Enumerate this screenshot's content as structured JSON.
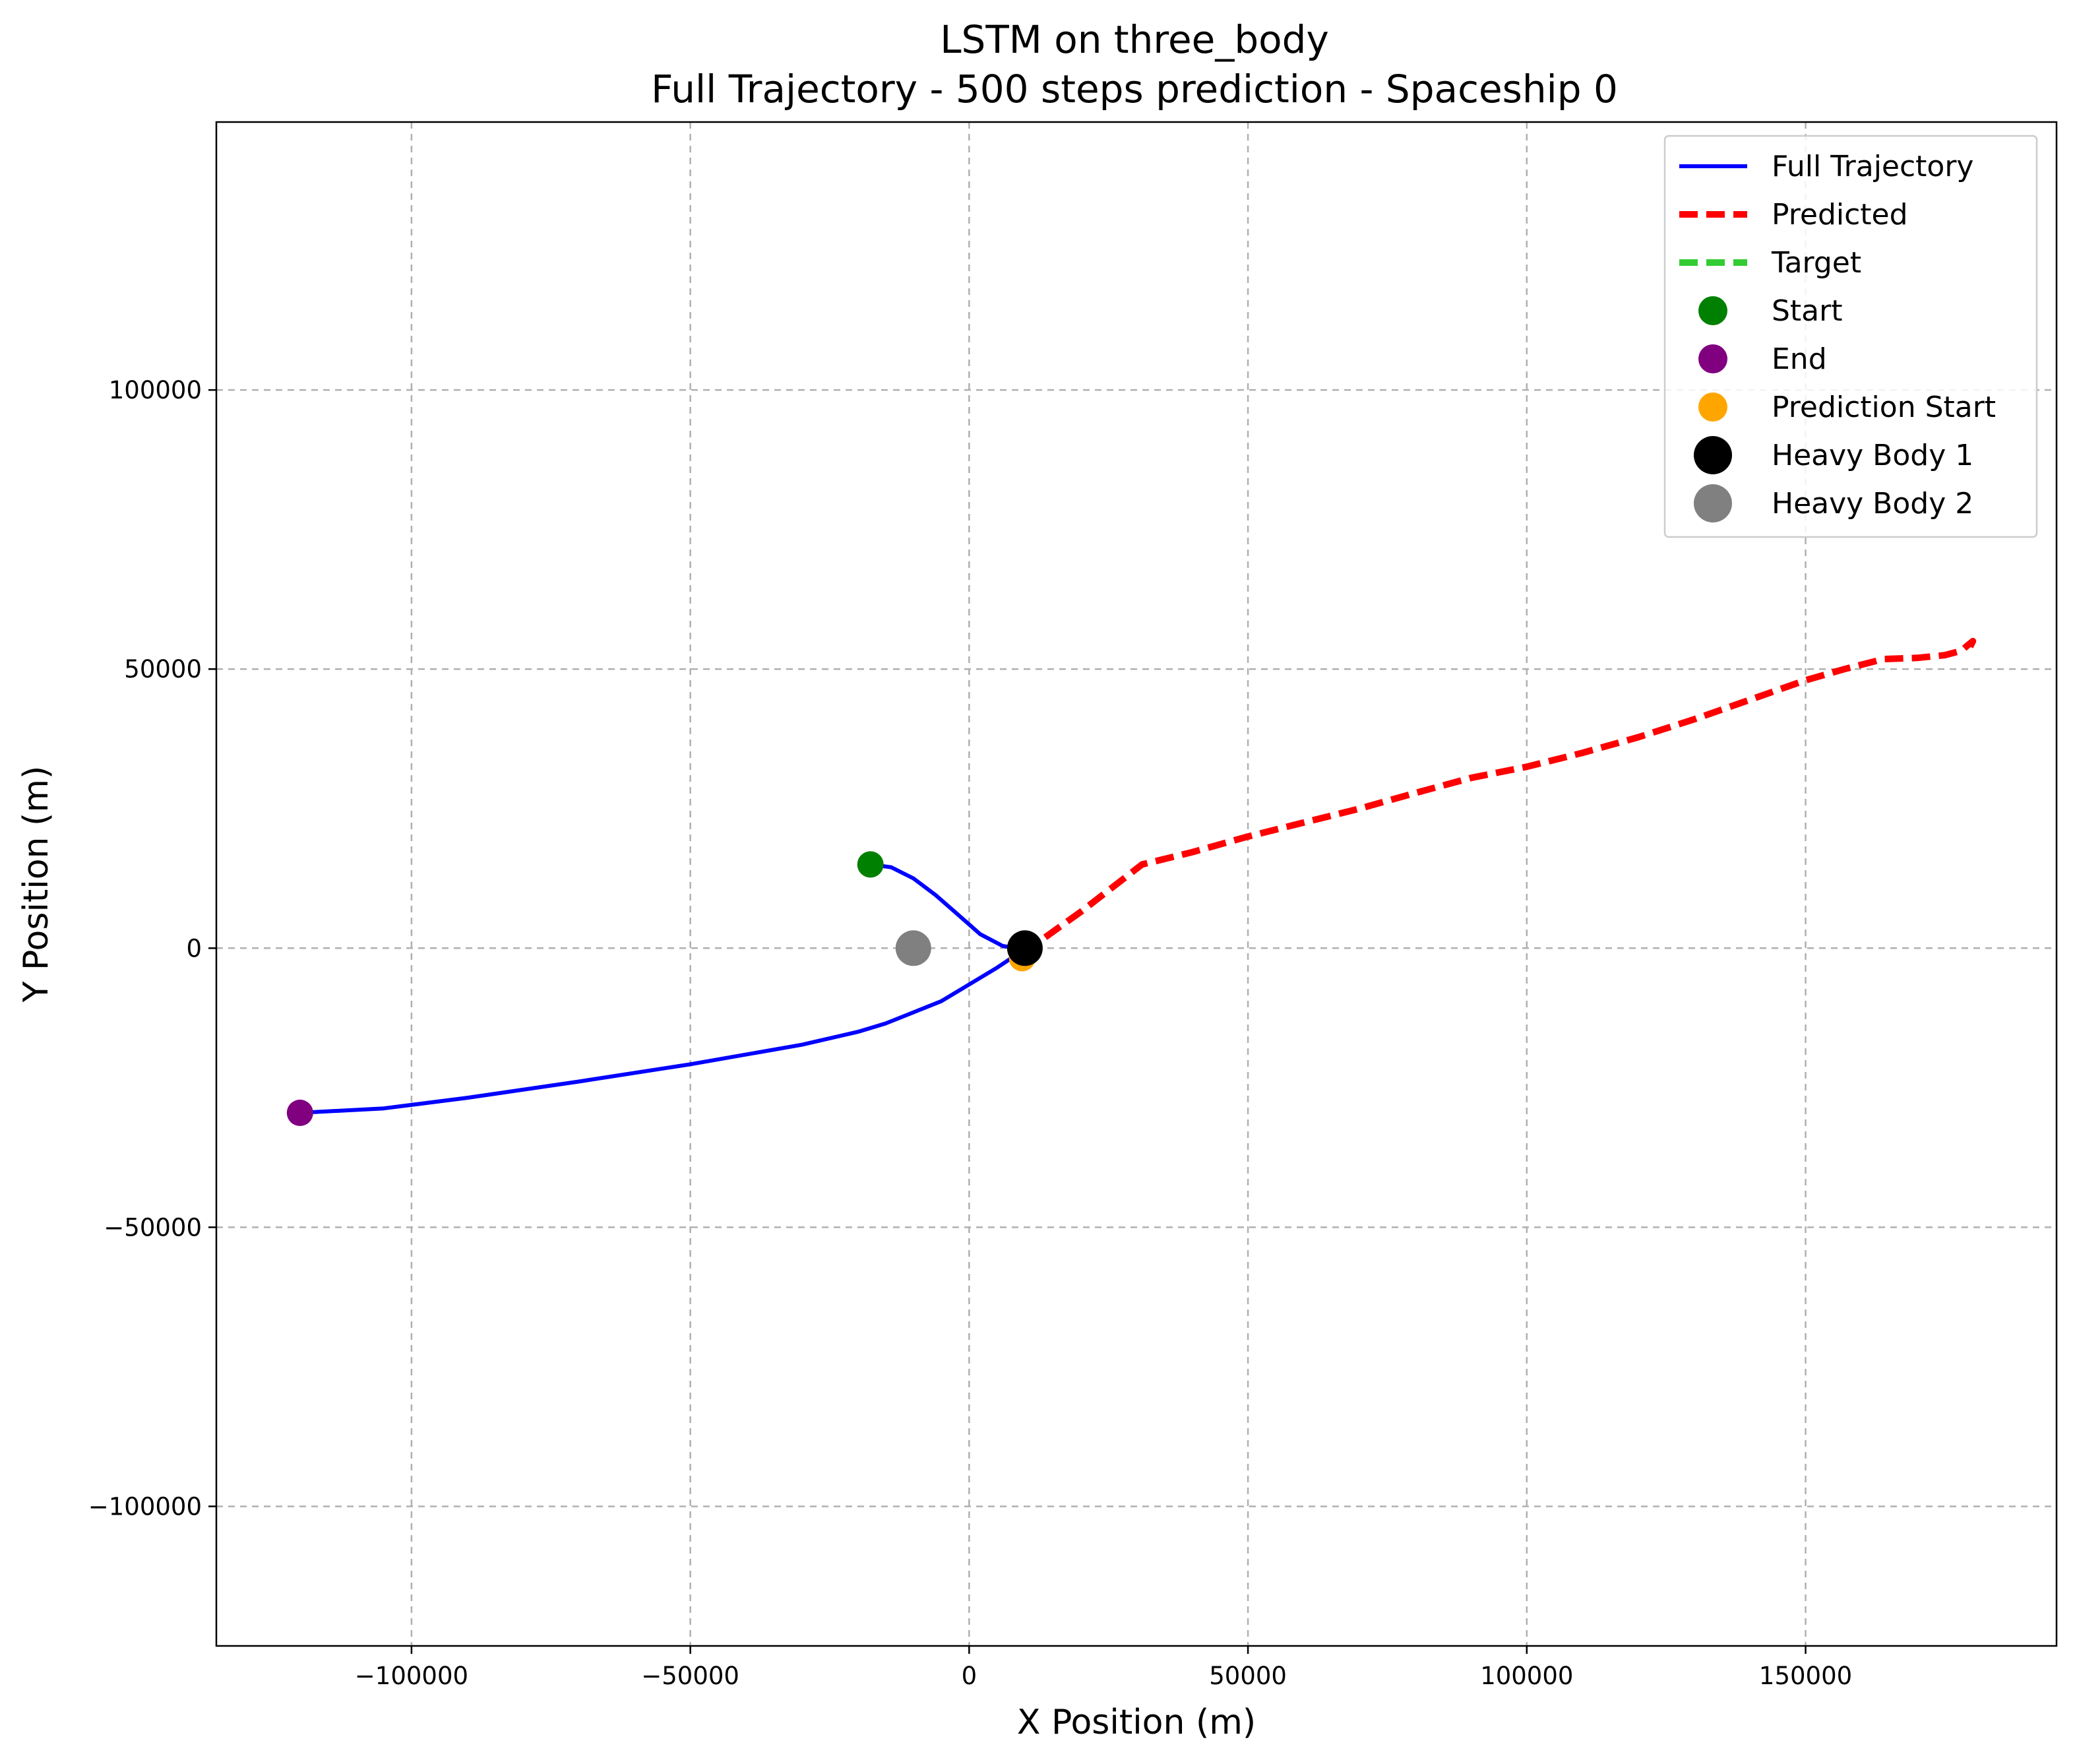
{
  "chart_data": {
    "type": "line",
    "title": "LSTM on three_body",
    "subtitle": "Full Trajectory - 500 steps prediction - Spaceship 0",
    "xlabel": "X Position (m)",
    "ylabel": "Y Position (m)",
    "xlim": [
      -135000,
      195000
    ],
    "ylim": [
      -125000,
      148000
    ],
    "xticks": [
      -100000,
      -50000,
      0,
      50000,
      100000,
      150000
    ],
    "yticks": [
      -100000,
      -50000,
      0,
      50000,
      100000
    ],
    "xtick_labels": [
      "−100000",
      "−50000",
      "0",
      "50000",
      "100000",
      "150000"
    ],
    "ytick_labels": [
      "−100000",
      "−50000",
      "0",
      "50000",
      "100000"
    ],
    "grid": true,
    "legend_position": "top-right",
    "series": [
      {
        "name": "Full Trajectory",
        "kind": "line",
        "color": "#0000ff",
        "x": [
          -17700,
          -14000,
          -10000,
          -6000,
          -2000,
          2000,
          6000,
          8500,
          10000,
          8000,
          5000,
          0,
          -5000,
          -10000,
          -15000,
          -20000,
          -30000,
          -50000,
          -70000,
          -90000,
          -105000,
          -120000
        ],
        "y": [
          15000,
          14500,
          12500,
          9500,
          6000,
          2500,
          400,
          0,
          0,
          -1500,
          -3500,
          -6500,
          -9500,
          -11500,
          -13500,
          -15000,
          -17300,
          -20800,
          -23900,
          -26800,
          -28700,
          -29500
        ]
      },
      {
        "name": "Predicted",
        "kind": "dashed-line",
        "color": "#ff0000",
        "x": [
          9800,
          13000,
          20000,
          31000,
          40000,
          50000,
          60000,
          70000,
          80000,
          90000,
          100000,
          110000,
          120000,
          130000,
          140000,
          150000,
          157000,
          164000,
          170000,
          175000,
          178000,
          179000,
          180000,
          179500
        ],
        "y": [
          -1000,
          1500,
          6500,
          15000,
          17200,
          20000,
          22500,
          25000,
          27800,
          30500,
          32500,
          35000,
          37800,
          41000,
          44500,
          48000,
          50000,
          51800,
          52000,
          52500,
          53300,
          54200,
          55000,
          54000
        ]
      },
      {
        "name": "Target",
        "kind": "dashed-line",
        "color": "#33cc33",
        "x": [],
        "y": []
      }
    ],
    "markers": [
      {
        "name": "Start",
        "x": -17700,
        "y": 15000,
        "color": "#008000",
        "size": "normal"
      },
      {
        "name": "End",
        "x": -120000,
        "y": -29500,
        "color": "#800080",
        "size": "normal"
      },
      {
        "name": "Prediction Start",
        "x": 9500,
        "y": -1800,
        "color": "#ffa500",
        "size": "normal"
      },
      {
        "name": "Heavy Body 1",
        "x": 10000,
        "y": 0,
        "color": "#000000",
        "size": "large"
      },
      {
        "name": "Heavy Body 2",
        "x": -10000,
        "y": 0,
        "color": "#808080",
        "size": "large"
      }
    ],
    "legend": [
      {
        "label": "Full Trajectory",
        "symbol": "line",
        "color": "#0000ff"
      },
      {
        "label": "Predicted",
        "symbol": "dashed",
        "color": "#ff0000"
      },
      {
        "label": "Target",
        "symbol": "dashed",
        "color": "#33cc33"
      },
      {
        "label": "Start",
        "symbol": "dot",
        "color": "#008000"
      },
      {
        "label": "End",
        "symbol": "dot",
        "color": "#800080"
      },
      {
        "label": "Prediction Start",
        "symbol": "dot",
        "color": "#ffa500"
      },
      {
        "label": "Heavy Body 1",
        "symbol": "big-dot",
        "color": "#000000"
      },
      {
        "label": "Heavy Body 2",
        "symbol": "big-dot",
        "color": "#808080"
      }
    ]
  }
}
